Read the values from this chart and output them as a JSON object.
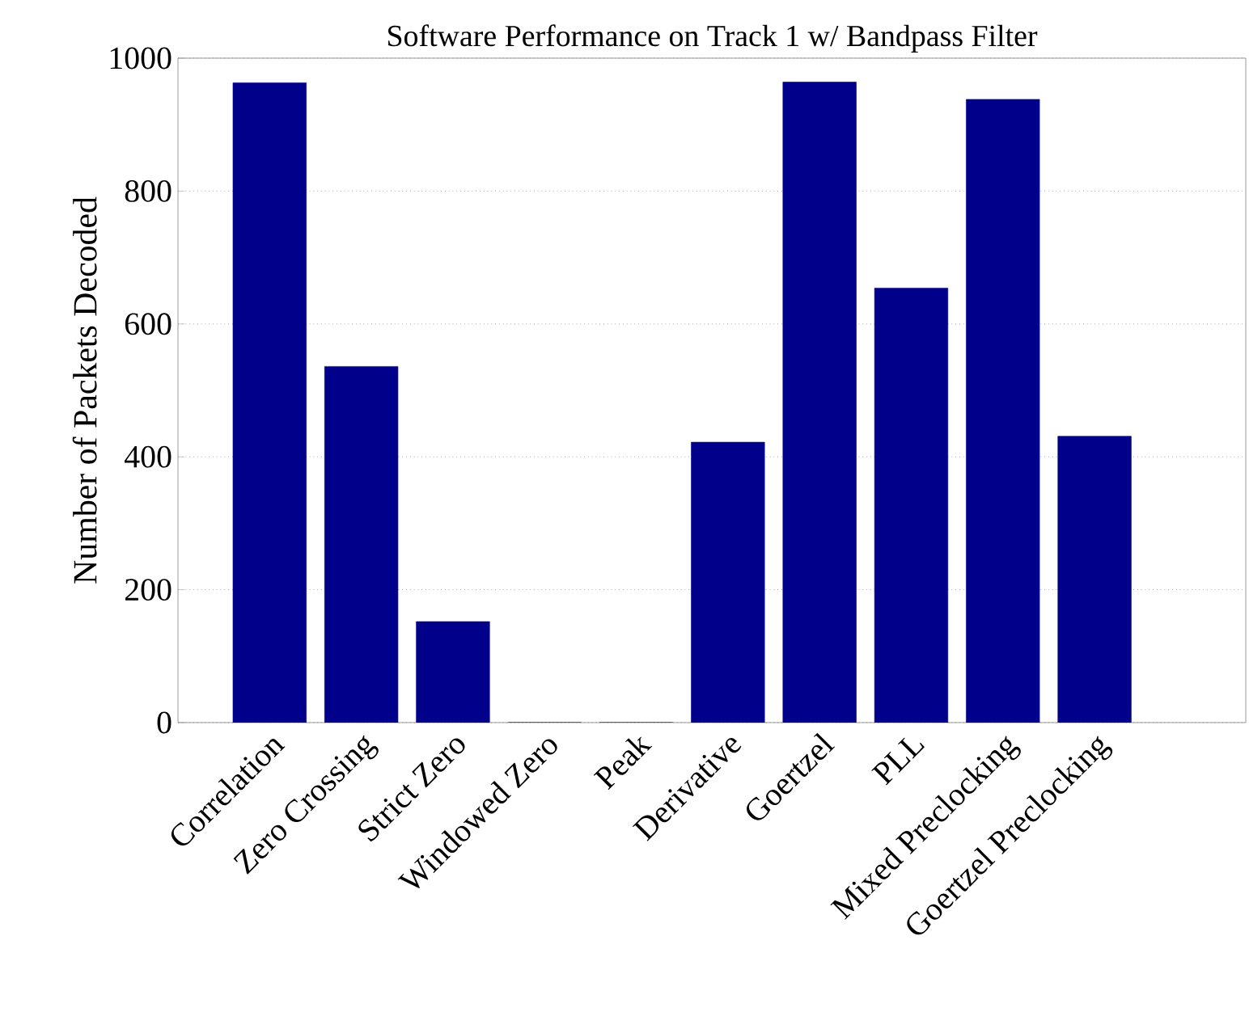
{
  "chart_data": {
    "type": "bar",
    "title": "Software Performance on Track 1 w/ Bandpass Filter",
    "ylabel": "Number of Packets Decoded",
    "categories": [
      "Correlation",
      "Zero Crossing",
      "Strict Zero",
      "Windowed Zero",
      "Peak",
      "Derivative",
      "Goertzel",
      "PLL",
      "Mixed Preclocking",
      "Goertzel Preclocking"
    ],
    "values": [
      963,
      536,
      152,
      0,
      0,
      422,
      964,
      654,
      938,
      431
    ],
    "color": "#00008b",
    "ylim": [
      0,
      1000
    ],
    "yticks": [
      0,
      200,
      400,
      600,
      800,
      1000
    ],
    "grid": "y"
  }
}
